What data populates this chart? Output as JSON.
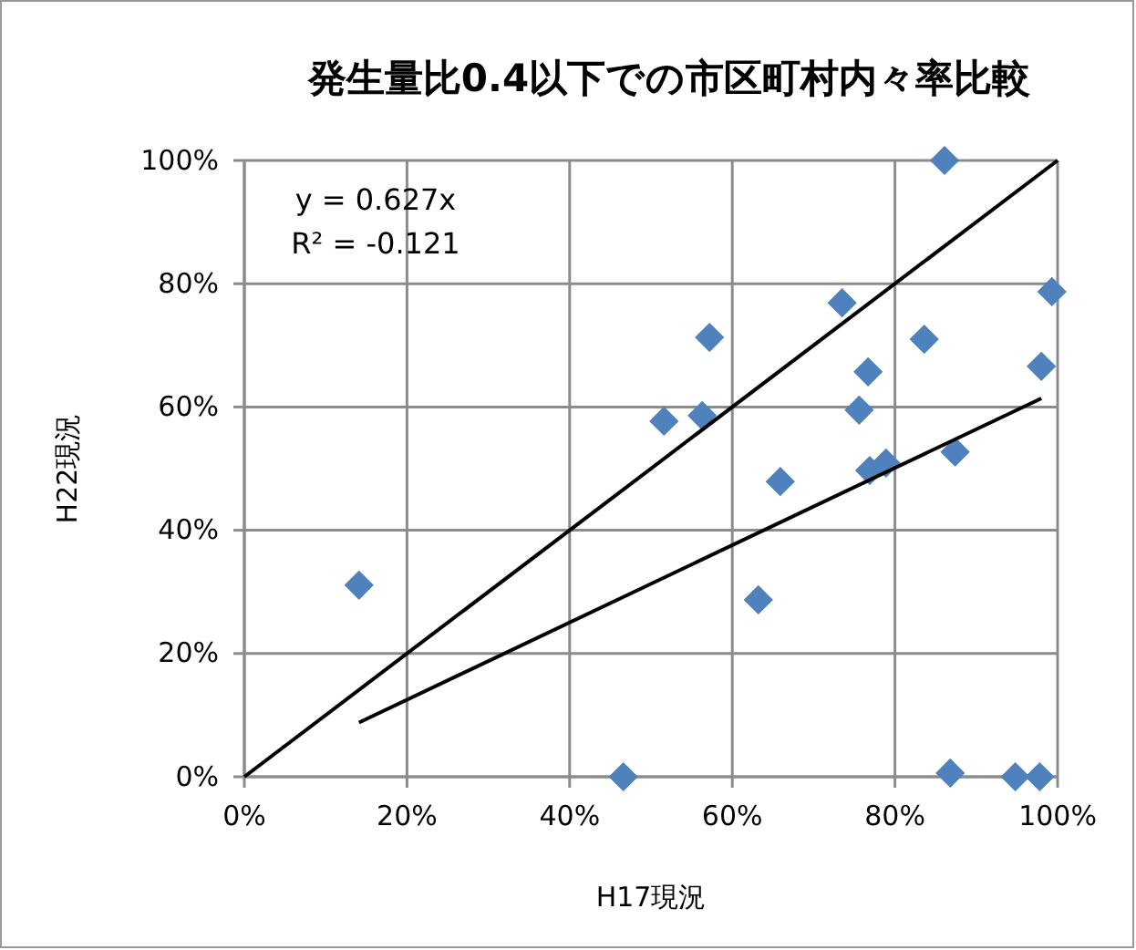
{
  "chart_data": {
    "type": "scatter",
    "title": "発生量比0.4以下での市区町村内々率比較",
    "xlabel": "H17現況",
    "ylabel": "H22現況",
    "xlim": [
      0,
      100
    ],
    "ylim": [
      0,
      100
    ],
    "xticks": [
      {
        "value": 0,
        "label": "0%"
      },
      {
        "value": 20,
        "label": "20%"
      },
      {
        "value": 40,
        "label": "40%"
      },
      {
        "value": 60,
        "label": "60%"
      },
      {
        "value": 80,
        "label": "80%"
      },
      {
        "value": 100,
        "label": "100%"
      }
    ],
    "yticks": [
      {
        "value": 0,
        "label": "0%"
      },
      {
        "value": 20,
        "label": "20%"
      },
      {
        "value": 40,
        "label": "40%"
      },
      {
        "value": 60,
        "label": "60%"
      },
      {
        "value": 80,
        "label": "80%"
      },
      {
        "value": 100,
        "label": "100%"
      }
    ],
    "grid": true,
    "series": [
      {
        "marker": "diamond",
        "color": "#4f81bd",
        "x": [
          14.1,
          46.6,
          51.6,
          57.2,
          56.3,
          63.2,
          65.9,
          73.5,
          75.6,
          76.7,
          76.9,
          78.9,
          83.6,
          86.1,
          86.8,
          87.4,
          94.8,
          97.8,
          98.0,
          99.3
        ],
        "values": [
          31.1,
          0,
          57.7,
          71.3,
          58.6,
          28.7,
          47.9,
          76.9,
          59.5,
          65.7,
          49.7,
          50.9,
          71.0,
          100,
          0.6,
          52.7,
          0,
          0,
          66.6,
          78.7
        ]
      },
      {
        "type": "line",
        "color": "#000000",
        "x": [
          0,
          100
        ],
        "values": [
          0,
          100
        ]
      },
      {
        "type": "line",
        "color": "#000000",
        "x": [
          14.1,
          98.0
        ],
        "values": [
          8.8,
          61.4
        ]
      }
    ],
    "annotations": [
      "y = 0.627x",
      "R² = -0.121"
    ]
  }
}
